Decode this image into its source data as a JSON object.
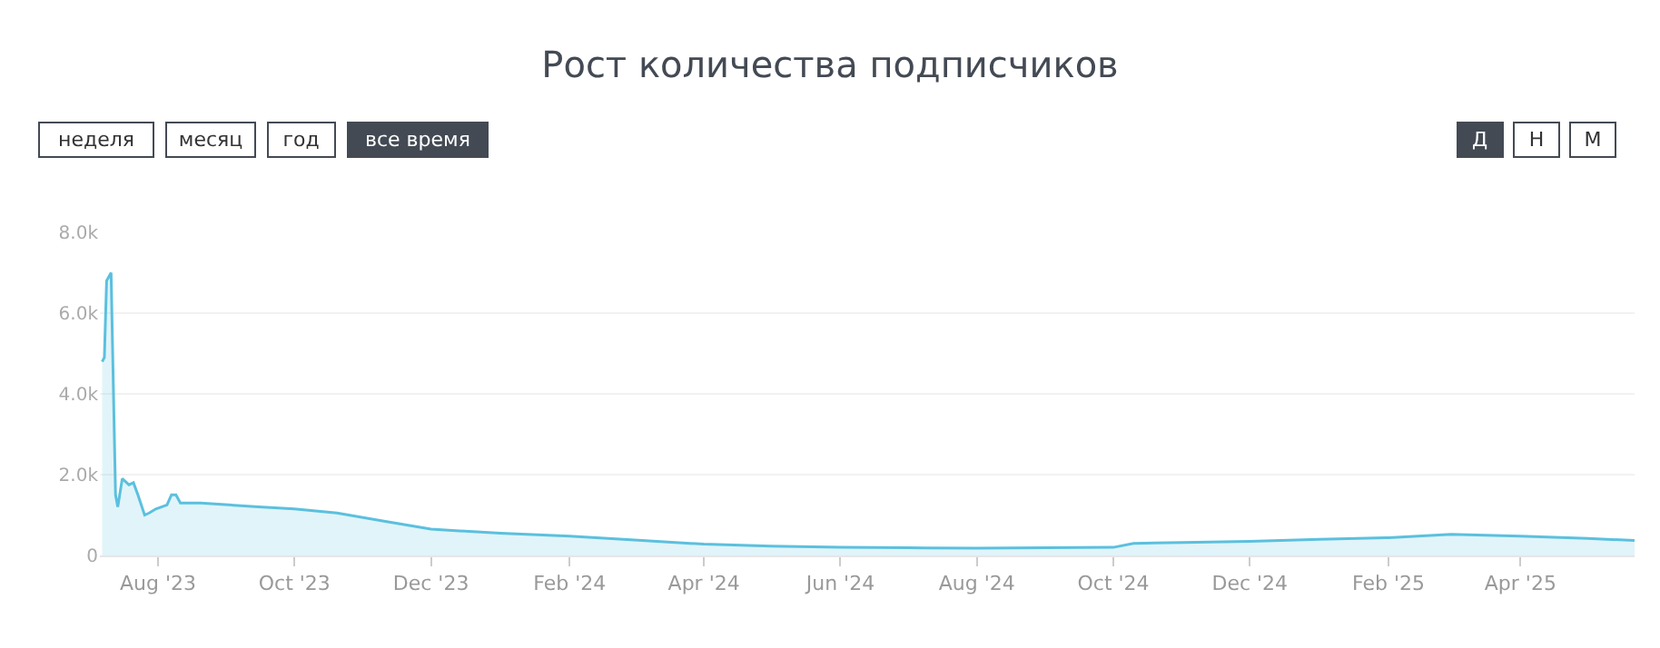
{
  "chart_data": {
    "type": "area",
    "title": "Рост количества подписчиков",
    "annotations": [
      "неделя",
      "месяц",
      "год",
      "все время",
      "Д",
      "Н",
      "М"
    ],
    "x": [
      "2023-07-07",
      "2023-07-08",
      "2023-07-09",
      "2023-07-10",
      "2023-07-11",
      "2023-07-13",
      "2023-07-14",
      "2023-07-16",
      "2023-07-19",
      "2023-07-21",
      "2023-07-23",
      "2023-07-26",
      "2023-07-28",
      "2023-07-31",
      "2023-08-05",
      "2023-08-07",
      "2023-08-09",
      "2023-08-11",
      "2023-08-20",
      "2023-09-15",
      "2023-10-01",
      "2023-10-20",
      "2023-11-10",
      "2023-12-01",
      "2024-01-01",
      "2024-02-01",
      "2024-03-01",
      "2024-04-01",
      "2024-05-01",
      "2024-06-01",
      "2024-07-01",
      "2024-08-01",
      "2024-09-01",
      "2024-10-01",
      "2024-10-10",
      "2024-11-01",
      "2024-12-01",
      "2025-01-01",
      "2025-02-01",
      "2025-03-01",
      "2025-04-01",
      "2025-05-01",
      "2025-05-22"
    ],
    "series": [
      {
        "color": "#5bc0de",
        "values": [
          4800,
          4900,
          6800,
          6900,
          7000,
          1500,
          1200,
          1900,
          1750,
          1800,
          1500,
          1000,
          1050,
          1150,
          1250,
          1500,
          1500,
          1300,
          1300,
          1200,
          1150,
          1050,
          850,
          650,
          550,
          480,
          380,
          280,
          230,
          200,
          190,
          180,
          190,
          200,
          300,
          320,
          350,
          400,
          440,
          520,
          480,
          420,
          370
        ]
      }
    ],
    "xlim": [
      "2023-07-06",
      "2025-05-22"
    ],
    "ylim": [
      0,
      8000
    ],
    "xticks": [
      {
        "value": "2023-08-01",
        "label": "Aug '23"
      },
      {
        "value": "2023-10-01",
        "label": "Oct '23"
      },
      {
        "value": "2023-12-01",
        "label": "Dec '23"
      },
      {
        "value": "2024-02-01",
        "label": "Feb '24"
      },
      {
        "value": "2024-04-01",
        "label": "Apr '24"
      },
      {
        "value": "2024-06-01",
        "label": "Jun '24"
      },
      {
        "value": "2024-08-01",
        "label": "Aug '24"
      },
      {
        "value": "2024-10-01",
        "label": "Oct '24"
      },
      {
        "value": "2024-12-01",
        "label": "Dec '24"
      },
      {
        "value": "2025-02-01",
        "label": "Feb '25"
      },
      {
        "value": "2025-04-01",
        "label": "Apr '25"
      }
    ],
    "yticks": [
      0,
      {
        "value": 2000,
        "label": "2.0k"
      },
      {
        "value": 4000,
        "label": "4.0k"
      },
      {
        "value": 6000,
        "label": "6.0k"
      },
      {
        "value": 8000,
        "label": "8.0k"
      }
    ],
    "grid": "y"
  }
}
